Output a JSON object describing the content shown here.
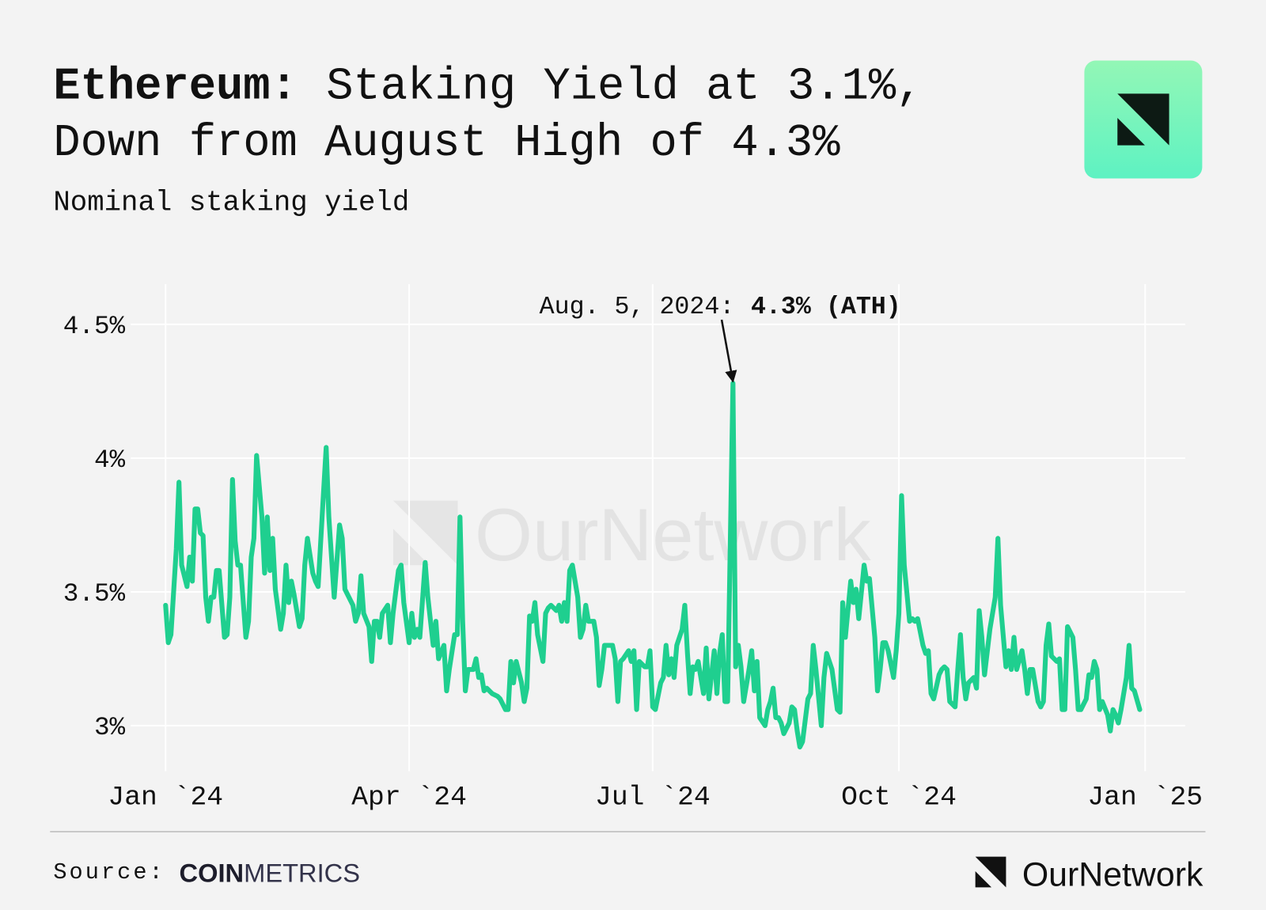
{
  "title": {
    "bold": "Ethereum:",
    "line1": "Staking Yield at 3.1%,",
    "line2": "Down from August High of 4.3%"
  },
  "watermark": "OurNetwork",
  "source": {
    "label": "Source:",
    "brand_bold": "COIN",
    "brand_light": "METRICS"
  },
  "footer_brand": "OurNetwork",
  "chart_data": {
    "type": "line",
    "subtitle": "Nominal staking yield",
    "color": "#1fcf8f",
    "grid": true,
    "annotation": {
      "x": 212,
      "y": 4.28,
      "date": "Aug. 5, 2024:",
      "value": "4.3% (ATH)"
    },
    "xlim": [
      -13,
      381
    ],
    "xticks": [
      {
        "value": 0,
        "label": "Jan `24"
      },
      {
        "value": 91,
        "label": "Apr `24"
      },
      {
        "value": 182,
        "label": "Jul `24"
      },
      {
        "value": 274,
        "label": "Oct `24"
      },
      {
        "value": 366,
        "label": "Jan `25"
      }
    ],
    "ylim": [
      2.83,
      4.65
    ],
    "yticks": [
      {
        "value": 3,
        "label": "3%"
      },
      {
        "value": 3.5,
        "label": "3.5%"
      },
      {
        "value": 4,
        "label": "4%"
      },
      {
        "value": 4.5,
        "label": "4.5%"
      }
    ],
    "x": [
      0,
      1,
      2,
      4,
      5,
      6,
      8,
      9,
      10,
      11,
      12,
      13,
      14,
      15,
      16,
      17,
      18,
      19,
      20,
      22,
      23,
      24,
      25,
      26,
      27,
      28,
      30,
      31,
      32,
      33,
      34,
      36,
      37,
      38,
      39,
      40,
      41,
      43,
      44,
      45,
      46,
      47,
      48,
      50,
      51,
      52,
      53,
      55,
      56,
      57,
      59,
      60,
      61,
      62,
      63,
      65,
      66,
      67,
      68,
      70,
      71,
      72,
      73,
      74,
      76,
      77,
      78,
      79,
      80,
      81,
      83,
      84,
      85,
      87,
      88,
      89,
      91,
      92,
      93,
      94,
      95,
      97,
      98,
      100,
      101,
      102,
      104,
      105,
      106,
      108,
      109,
      110,
      111,
      112,
      113,
      115,
      116,
      117,
      118,
      119,
      120,
      122,
      124,
      125,
      127,
      128,
      129,
      130,
      131,
      133,
      134,
      135,
      136,
      137,
      138,
      139,
      141,
      142,
      143,
      144,
      146,
      147,
      148,
      149,
      150,
      151,
      152,
      154,
      155,
      156,
      157,
      158,
      160,
      161,
      162,
      163,
      164,
      166,
      167,
      168,
      169,
      170,
      171,
      173,
      174,
      175,
      176,
      177,
      179,
      180,
      181,
      182,
      183,
      185,
      186,
      187,
      188,
      189,
      190,
      191,
      193,
      194,
      195,
      196,
      197,
      198,
      199,
      201,
      202,
      203,
      205,
      206,
      207,
      208,
      209,
      210,
      212,
      213,
      214,
      215,
      216,
      218,
      219,
      220,
      221,
      222,
      224,
      225,
      226,
      227,
      228,
      229,
      230,
      231,
      233,
      234,
      235,
      236,
      237,
      238,
      240,
      241,
      242,
      243,
      245,
      246,
      247,
      248,
      249,
      251,
      252,
      253,
      254,
      256,
      257,
      258,
      259,
      261,
      262,
      263,
      265,
      266,
      267,
      268,
      269,
      270,
      272,
      273,
      274,
      275,
      276,
      278,
      279,
      280,
      281,
      283,
      284,
      285,
      286,
      287,
      289,
      290,
      291,
      292,
      293,
      295,
      296,
      297,
      298,
      299,
      300,
      302,
      303,
      304,
      305,
      306,
      308,
      309,
      310,
      311,
      312,
      314,
      315,
      316,
      317,
      318,
      320,
      321,
      322,
      323,
      324,
      326,
      327,
      328,
      329,
      330,
      331,
      333,
      334,
      335,
      336,
      337,
      339,
      340,
      341,
      342,
      344,
      345,
      346,
      347,
      348,
      349,
      350,
      352,
      353,
      354,
      355,
      356,
      357,
      359,
      360,
      361,
      362,
      364
    ],
    "values": [
      3.45,
      3.31,
      3.34,
      3.66,
      3.91,
      3.6,
      3.52,
      3.63,
      3.54,
      3.81,
      3.81,
      3.72,
      3.71,
      3.48,
      3.39,
      3.48,
      3.48,
      3.58,
      3.58,
      3.33,
      3.34,
      3.48,
      3.92,
      3.69,
      3.6,
      3.6,
      3.33,
      3.39,
      3.63,
      3.7,
      4.01,
      3.78,
      3.57,
      3.78,
      3.58,
      3.7,
      3.51,
      3.36,
      3.42,
      3.6,
      3.46,
      3.54,
      3.49,
      3.37,
      3.4,
      3.6,
      3.7,
      3.57,
      3.54,
      3.52,
      3.87,
      4.04,
      3.78,
      3.63,
      3.48,
      3.75,
      3.7,
      3.51,
      3.49,
      3.45,
      3.39,
      3.42,
      3.56,
      3.42,
      3.37,
      3.24,
      3.39,
      3.39,
      3.33,
      3.42,
      3.45,
      3.31,
      3.42,
      3.58,
      3.6,
      3.46,
      3.31,
      3.42,
      3.33,
      3.36,
      3.33,
      3.61,
      3.48,
      3.3,
      3.39,
      3.25,
      3.3,
      3.13,
      3.21,
      3.34,
      3.34,
      3.78,
      3.39,
      3.13,
      3.21,
      3.21,
      3.25,
      3.18,
      3.19,
      3.13,
      3.14,
      3.12,
      3.11,
      3.1,
      3.06,
      3.06,
      3.24,
      3.16,
      3.24,
      3.16,
      3.09,
      3.14,
      3.41,
      3.39,
      3.46,
      3.34,
      3.24,
      3.42,
      3.44,
      3.45,
      3.43,
      3.45,
      3.39,
      3.46,
      3.39,
      3.58,
      3.6,
      3.48,
      3.33,
      3.36,
      3.45,
      3.39,
      3.39,
      3.33,
      3.15,
      3.21,
      3.3,
      3.3,
      3.3,
      3.25,
      3.09,
      3.24,
      3.25,
      3.28,
      3.24,
      3.28,
      3.06,
      3.24,
      3.22,
      3.22,
      3.28,
      3.07,
      3.06,
      3.16,
      3.18,
      3.3,
      3.19,
      3.25,
      3.18,
      3.3,
      3.36,
      3.45,
      3.27,
      3.12,
      3.22,
      3.21,
      3.24,
      3.12,
      3.29,
      3.1,
      3.28,
      3.12,
      3.27,
      3.34,
      3.09,
      3.09,
      4.28,
      3.22,
      3.3,
      3.22,
      3.09,
      3.21,
      3.28,
      3.13,
      3.24,
      3.03,
      3.0,
      3.06,
      3.09,
      3.14,
      3.03,
      3.03,
      3.01,
      2.97,
      3.01,
      3.07,
      3.06,
      2.98,
      2.92,
      2.94,
      3.1,
      3.12,
      3.3,
      3.21,
      3.0,
      3.18,
      3.27,
      3.24,
      3.21,
      3.06,
      3.05,
      3.46,
      3.33,
      3.54,
      3.46,
      3.51,
      3.4,
      3.6,
      3.54,
      3.55,
      3.33,
      3.13,
      3.21,
      3.31,
      3.31,
      3.28,
      3.18,
      3.28,
      3.42,
      3.86,
      3.6,
      3.39,
      3.4,
      3.39,
      3.4,
      3.3,
      3.27,
      3.28,
      3.12,
      3.1,
      3.19,
      3.21,
      3.22,
      3.21,
      3.09,
      3.07,
      3.21,
      3.34,
      3.18,
      3.1,
      3.16,
      3.18,
      3.14,
      3.43,
      3.33,
      3.19,
      3.36,
      3.42,
      3.48,
      3.7,
      3.45,
      3.22,
      3.28,
      3.21,
      3.33,
      3.21,
      3.28,
      3.21,
      3.12,
      3.21,
      3.21,
      3.09,
      3.07,
      3.09,
      3.3,
      3.38,
      3.26,
      3.24,
      3.25,
      3.06,
      3.06,
      3.37,
      3.33,
      3.21,
      3.06,
      3.06,
      3.1,
      3.19,
      3.18,
      3.24,
      3.21,
      3.06,
      3.09,
      3.04,
      2.98,
      3.06,
      3.04,
      3.01,
      3.06,
      3.18,
      3.3,
      3.14,
      3.13,
      3.06
    ]
  }
}
